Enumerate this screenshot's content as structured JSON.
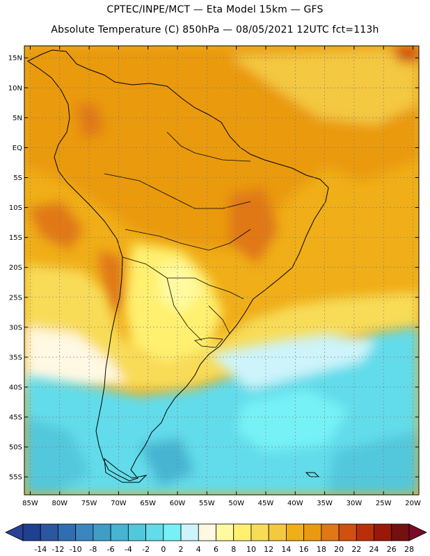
{
  "header": {
    "line1": "CPTEC/INPE/MCT —  Eta Model 15km — GFS",
    "line2": "Absolute Temperature (C) 850hPa — 08/05/2021 12UTC fct=113h"
  },
  "map": {
    "lat_labels": [
      "15N",
      "10N",
      "5N",
      "EQ",
      "5S",
      "10S",
      "15S",
      "20S",
      "25S",
      "30S",
      "35S",
      "40S",
      "45S",
      "50S",
      "55S"
    ],
    "lon_labels": [
      "85W",
      "80W",
      "75W",
      "70W",
      "65W",
      "60W",
      "55W",
      "50W",
      "45W",
      "40W",
      "35W",
      "30W",
      "25W",
      "20W"
    ],
    "lat_range": [
      17,
      -58
    ],
    "lon_range": [
      -86,
      -19
    ],
    "grid": true
  },
  "colorbar": {
    "labels": [
      "-14",
      "-12",
      "-10",
      "-8",
      "-6",
      "-4",
      "-2",
      "0",
      "2",
      "4",
      "6",
      "8",
      "10",
      "12",
      "14",
      "16",
      "18",
      "20",
      "22",
      "24",
      "26",
      "28"
    ],
    "colors": [
      "#1f3f8f",
      "#2b56a0",
      "#2f6eb0",
      "#3a86c0",
      "#3f9ec8",
      "#46b4d2",
      "#52c8dc",
      "#62dcea",
      "#76f2f6",
      "#cdf4fa",
      "#fff8e2",
      "#fffaa0",
      "#fff070",
      "#f8dc58",
      "#f4c840",
      "#f0ae18",
      "#ea9a10",
      "#e07818",
      "#d05010",
      "#b83008",
      "#9a1808",
      "#741010"
    ],
    "left_arrow_color": "#2a3f96",
    "right_arrow_color": "#7a0a28"
  }
}
